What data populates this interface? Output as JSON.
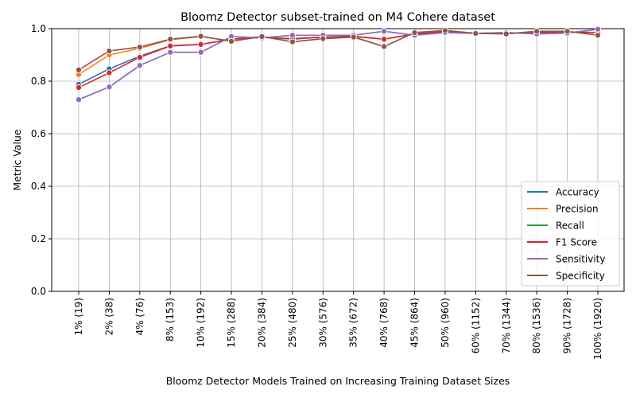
{
  "chart_data": {
    "type": "line",
    "title": "Bloomz Detector subset-trained on M4 Cohere dataset",
    "xlabel": "Bloomz Detector Models Trained on Increasing Training Dataset Sizes",
    "ylabel": "Metric Value",
    "ylim": [
      0,
      1.0
    ],
    "yticks": [
      "0.0",
      "0.2",
      "0.4",
      "0.6",
      "0.8",
      "1.0"
    ],
    "grid": true,
    "legend_position": "lower-right",
    "categories": [
      "1% (19)",
      "2% (38)",
      "4% (76)",
      "8% (153)",
      "10% (192)",
      "15% (288)",
      "20% (384)",
      "25% (480)",
      "30% (576)",
      "35% (672)",
      "40% (768)",
      "45% (864)",
      "50% (960)",
      "60% (1152)",
      "70% (1344)",
      "80% (1536)",
      "90% (1728)",
      "100% (1920)"
    ],
    "series": [
      {
        "name": "Accuracy",
        "color": "#1f77b4",
        "values": [
          0.788,
          0.847,
          0.895,
          0.935,
          0.94,
          0.96,
          0.968,
          0.96,
          0.968,
          0.97,
          0.96,
          0.98,
          0.99,
          0.982,
          0.982,
          0.985,
          0.987,
          0.985
        ]
      },
      {
        "name": "Precision",
        "color": "#ff7f0e",
        "values": [
          0.825,
          0.9,
          0.925,
          0.958,
          0.97,
          0.952,
          0.97,
          0.95,
          0.962,
          0.968,
          0.932,
          0.985,
          0.993,
          0.982,
          0.98,
          0.99,
          0.99,
          0.975
        ]
      },
      {
        "name": "Recall",
        "color": "#2ca02c",
        "values": [
          0.73,
          0.778,
          0.86,
          0.91,
          0.91,
          0.97,
          0.965,
          0.975,
          0.975,
          0.975,
          0.99,
          0.975,
          0.985,
          0.982,
          0.985,
          0.98,
          0.983,
          0.998
        ]
      },
      {
        "name": "F1 Score",
        "color": "#d62728",
        "values": [
          0.776,
          0.832,
          0.891,
          0.934,
          0.94,
          0.96,
          0.967,
          0.962,
          0.968,
          0.971,
          0.96,
          0.98,
          0.989,
          0.982,
          0.982,
          0.985,
          0.986,
          0.986
        ]
      },
      {
        "name": "Sensitivity",
        "color": "#9467bd",
        "values": [
          0.73,
          0.778,
          0.86,
          0.91,
          0.91,
          0.97,
          0.965,
          0.975,
          0.975,
          0.975,
          0.99,
          0.975,
          0.985,
          0.982,
          0.985,
          0.98,
          0.983,
          0.998
        ]
      },
      {
        "name": "Specificity",
        "color": "#8c564b",
        "values": [
          0.843,
          0.915,
          0.93,
          0.96,
          0.971,
          0.952,
          0.97,
          0.95,
          0.962,
          0.968,
          0.932,
          0.985,
          0.993,
          0.982,
          0.98,
          0.99,
          0.99,
          0.975
        ]
      }
    ]
  }
}
